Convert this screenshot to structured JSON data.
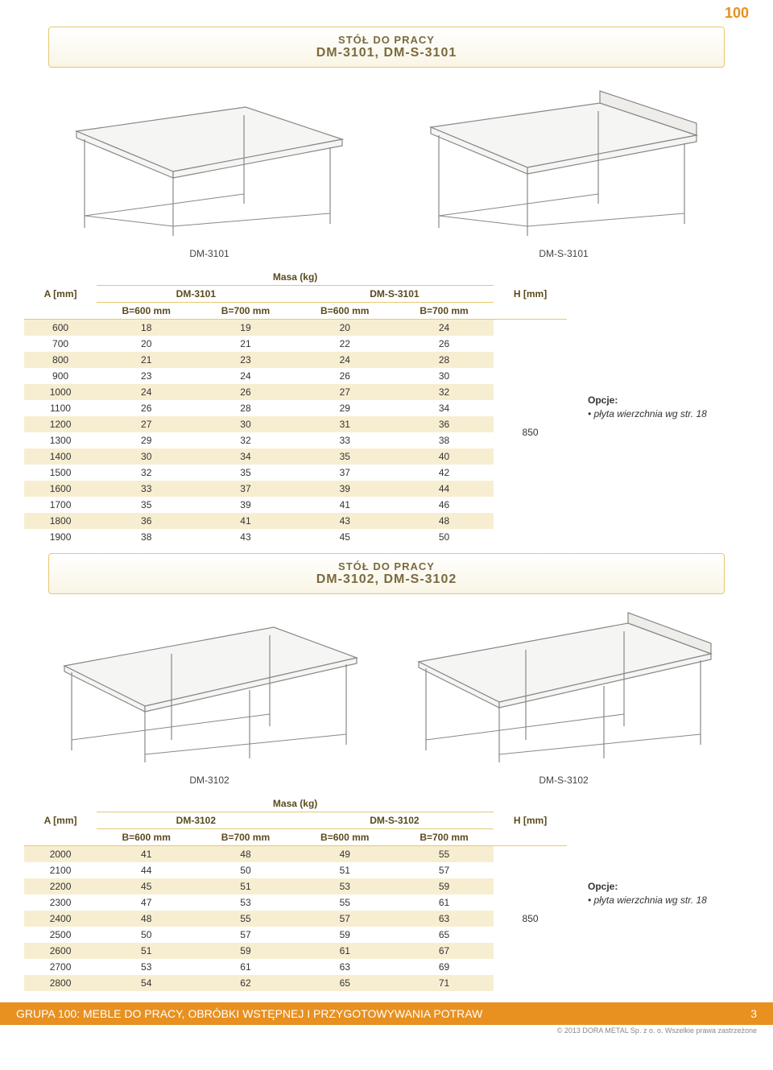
{
  "page_number_top": "100",
  "section1": {
    "title_line1": "STÓŁ DO PRACY",
    "title_line2": "DM-3101, DM-S-3101",
    "illus_left_label": "DM-3101",
    "illus_right_label": "DM-S-3101",
    "mass_header": "Masa (kg)",
    "col_a": "A [mm]",
    "col_h": "H [mm]",
    "model_left": "DM-3101",
    "model_right": "DM-S-3101",
    "sub_b600": "B=600 mm",
    "sub_b700": "B=700 mm",
    "h_value": "850",
    "rows": [
      {
        "a": "600",
        "v": [
          "18",
          "19",
          "20",
          "24"
        ]
      },
      {
        "a": "700",
        "v": [
          "20",
          "21",
          "22",
          "26"
        ]
      },
      {
        "a": "800",
        "v": [
          "21",
          "23",
          "24",
          "28"
        ]
      },
      {
        "a": "900",
        "v": [
          "23",
          "24",
          "26",
          "30"
        ]
      },
      {
        "a": "1000",
        "v": [
          "24",
          "26",
          "27",
          "32"
        ]
      },
      {
        "a": "1100",
        "v": [
          "26",
          "28",
          "29",
          "34"
        ]
      },
      {
        "a": "1200",
        "v": [
          "27",
          "30",
          "31",
          "36"
        ]
      },
      {
        "a": "1300",
        "v": [
          "29",
          "32",
          "33",
          "38"
        ]
      },
      {
        "a": "1400",
        "v": [
          "30",
          "34",
          "35",
          "40"
        ]
      },
      {
        "a": "1500",
        "v": [
          "32",
          "35",
          "37",
          "42"
        ]
      },
      {
        "a": "1600",
        "v": [
          "33",
          "37",
          "39",
          "44"
        ]
      },
      {
        "a": "1700",
        "v": [
          "35",
          "39",
          "41",
          "46"
        ]
      },
      {
        "a": "1800",
        "v": [
          "36",
          "41",
          "43",
          "48"
        ]
      },
      {
        "a": "1900",
        "v": [
          "38",
          "43",
          "45",
          "50"
        ]
      }
    ],
    "options_title": "Opcje:",
    "options_item": "• płyta wierzchnia wg str. 18"
  },
  "section2": {
    "title_line1": "STÓŁ DO PRACY",
    "title_line2": "DM-3102, DM-S-3102",
    "illus_left_label": "DM-3102",
    "illus_right_label": "DM-S-3102",
    "mass_header": "Masa (kg)",
    "col_a": "A [mm]",
    "col_h": "H [mm]",
    "model_left": "DM-3102",
    "model_right": "DM-S-3102",
    "sub_b600": "B=600 mm",
    "sub_b700": "B=700 mm",
    "h_value": "850",
    "rows": [
      {
        "a": "2000",
        "v": [
          "41",
          "48",
          "49",
          "55"
        ]
      },
      {
        "a": "2100",
        "v": [
          "44",
          "50",
          "51",
          "57"
        ]
      },
      {
        "a": "2200",
        "v": [
          "45",
          "51",
          "53",
          "59"
        ]
      },
      {
        "a": "2300",
        "v": [
          "47",
          "53",
          "55",
          "61"
        ]
      },
      {
        "a": "2400",
        "v": [
          "48",
          "55",
          "57",
          "63"
        ]
      },
      {
        "a": "2500",
        "v": [
          "50",
          "57",
          "59",
          "65"
        ]
      },
      {
        "a": "2600",
        "v": [
          "51",
          "59",
          "61",
          "67"
        ]
      },
      {
        "a": "2700",
        "v": [
          "53",
          "61",
          "63",
          "69"
        ]
      },
      {
        "a": "2800",
        "v": [
          "54",
          "62",
          "65",
          "71"
        ]
      }
    ],
    "options_title": "Opcje:",
    "options_item": "• płyta wierzchnia wg str. 18"
  },
  "footer": {
    "group_text": "GRUPA 100: MEBLE DO PRACY, OBRÓBKI WSTĘPNEJ I PRZYGOTOWYWANIA POTRAW",
    "page_num": "3",
    "copyright": "© 2013 DORA METAL Sp. z o. o. Wszelkie prawa zastrzeżone"
  },
  "colors": {
    "accent": "#e89020",
    "border": "#e6c870",
    "odd_row": "#f7eed2",
    "text_header": "#7a6a3e"
  }
}
